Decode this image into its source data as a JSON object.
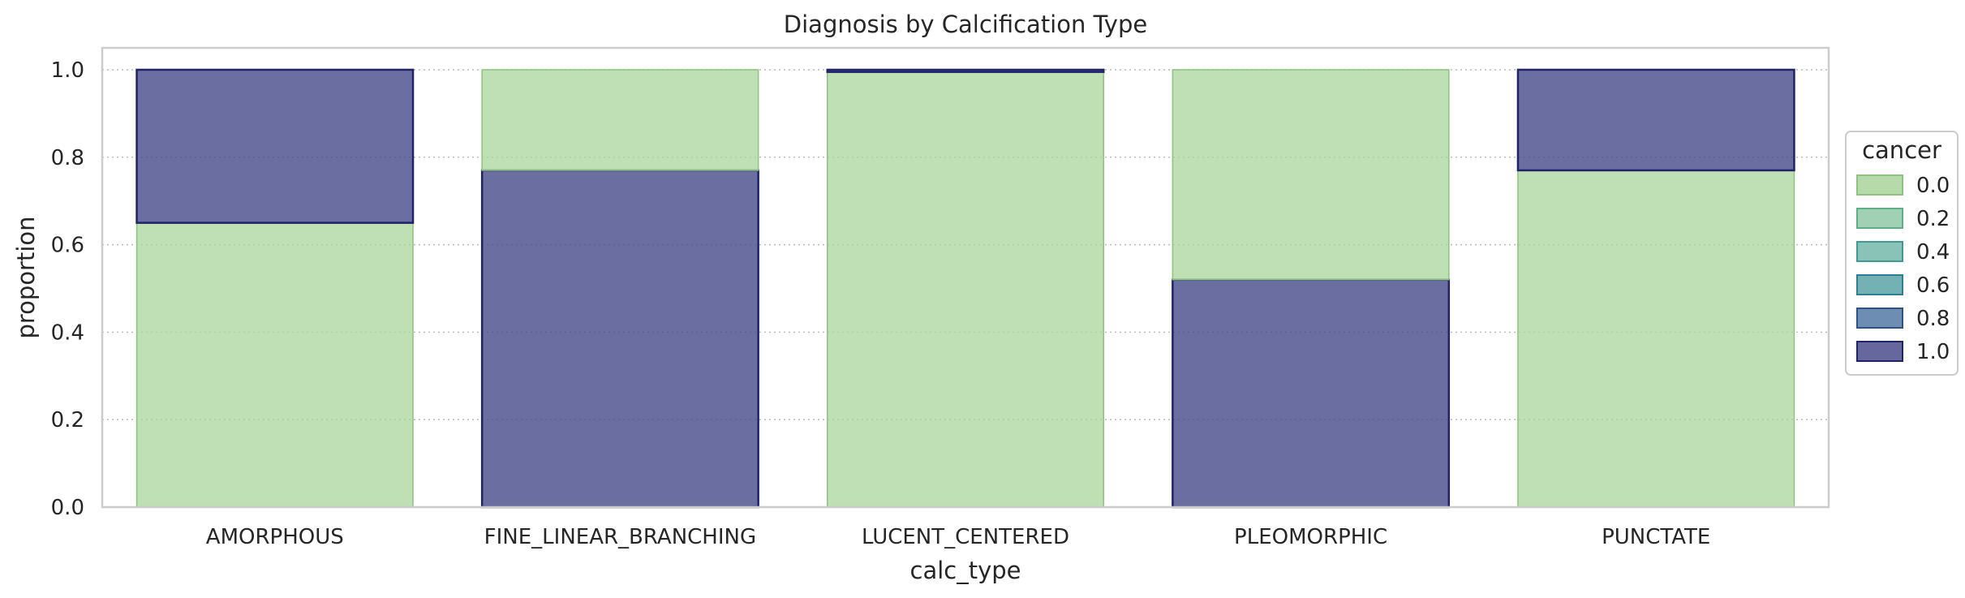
{
  "chart_data": {
    "type": "bar",
    "stacked": true,
    "title": "Diagnosis by Calcification Type",
    "xlabel": "calc_type",
    "ylabel": "proportion",
    "ylim": [
      0,
      1.05
    ],
    "yticks": [
      "0.0",
      "0.2",
      "0.4",
      "0.6",
      "0.8",
      "1.0"
    ],
    "grid": "horizontal dotted",
    "categories": [
      "AMORPHOUS",
      "FINE_LINEAR_BRANCHING",
      "LUCENT_CENTERED",
      "PLEOMORPHIC",
      "PUNCTATE"
    ],
    "series": [
      {
        "name": "0.0",
        "color": "#a9d49b",
        "edge": "#8cc47f",
        "values": [
          0.65,
          0.23,
          0.995,
          0.48,
          0.77
        ]
      },
      {
        "name": "1.0",
        "color": "#4b4e8c",
        "edge": "#1f2468",
        "values": [
          0.35,
          0.77,
          0.005,
          0.52,
          0.23
        ]
      }
    ],
    "stack_order": [
      "1.0",
      "0.0"
    ],
    "per_category_bottom": [
      "0.0",
      "1.0",
      "0.0",
      "1.0",
      "0.0"
    ],
    "legend": {
      "title": "cancer",
      "placement": "right",
      "entries": [
        {
          "label": "0.0",
          "color": "#a9d49b",
          "edge": "#8cc47f"
        },
        {
          "label": "0.2",
          "color": "#8fc9a8",
          "edge": "#5fae88"
        },
        {
          "label": "0.4",
          "color": "#74b9ab",
          "edge": "#3f9a93"
        },
        {
          "label": "0.6",
          "color": "#5ca3a7",
          "edge": "#2a8090"
        },
        {
          "label": "0.8",
          "color": "#5479a6",
          "edge": "#2c5286"
        },
        {
          "label": "1.0",
          "color": "#4b4e8c",
          "edge": "#1f2468"
        }
      ]
    }
  }
}
